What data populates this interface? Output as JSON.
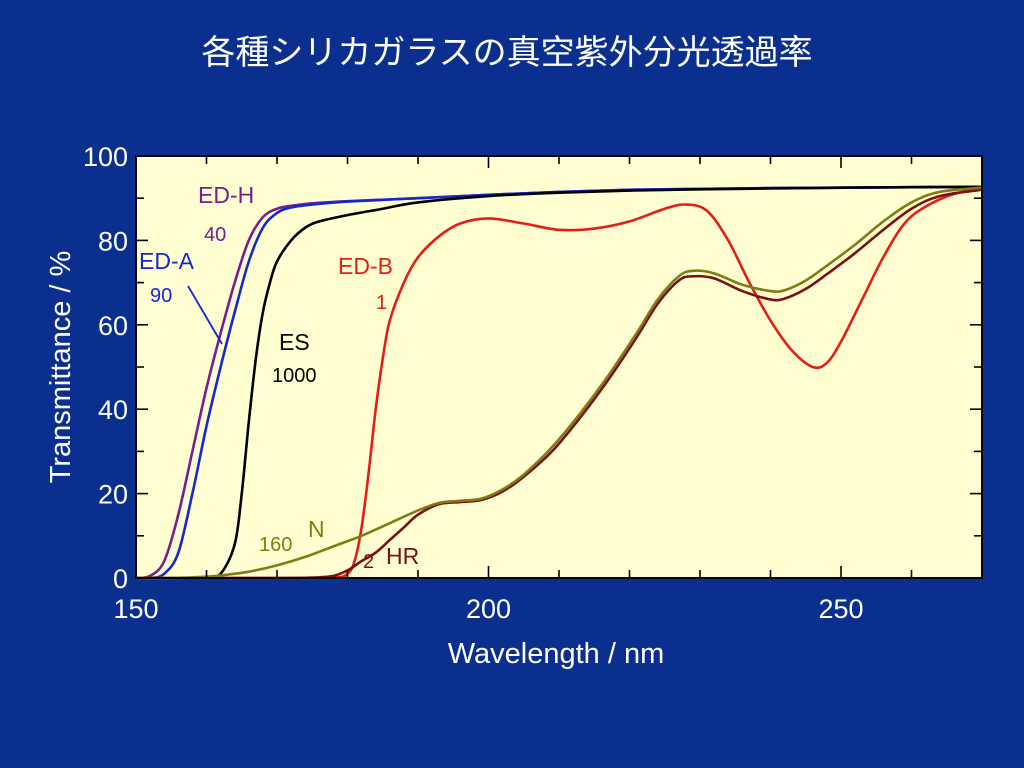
{
  "title": "各種シリカガラスの真空紫外分光透過率",
  "colors": {
    "background": "#0a2f8f",
    "plot_area": "#ffffd2"
  },
  "chart_data": {
    "type": "line",
    "title": "各種シリカガラスの真空紫外分光透過率",
    "xlabel": "Wavelength / nm",
    "ylabel": "Transmittance / %",
    "xlim": [
      150,
      270
    ],
    "ylim": [
      0,
      100
    ],
    "xticks": [
      150,
      200,
      250
    ],
    "yticks": [
      0,
      20,
      40,
      60,
      80,
      100
    ],
    "grid": false,
    "legend": "none (curves labeled directly)",
    "series": [
      {
        "name": "ED-H",
        "number": "40",
        "color": "#7a1d8f",
        "points": [
          [
            150,
            0
          ],
          [
            152,
            0.5
          ],
          [
            154,
            4
          ],
          [
            156,
            15
          ],
          [
            158,
            30
          ],
          [
            160,
            45
          ],
          [
            162,
            58
          ],
          [
            164,
            70
          ],
          [
            166,
            80
          ],
          [
            168,
            85.5
          ],
          [
            170,
            87.5
          ],
          [
            172,
            88.2
          ],
          [
            175,
            88.8
          ],
          [
            180,
            89.3
          ],
          [
            190,
            90
          ],
          [
            200,
            90.8
          ],
          [
            210,
            91.5
          ],
          [
            220,
            92
          ],
          [
            230,
            92.2
          ],
          [
            240,
            92.4
          ],
          [
            250,
            92.5
          ],
          [
            260,
            92.6
          ],
          [
            270,
            92.7
          ]
        ]
      },
      {
        "name": "ED-A",
        "number": "90",
        "color": "#1428d2",
        "points": [
          [
            150,
            0
          ],
          [
            152,
            0
          ],
          [
            154,
            1
          ],
          [
            156,
            6
          ],
          [
            158,
            20
          ],
          [
            160,
            36
          ],
          [
            162,
            50
          ],
          [
            164,
            63
          ],
          [
            166,
            75
          ],
          [
            168,
            83
          ],
          [
            170,
            86.5
          ],
          [
            172,
            87.8
          ],
          [
            175,
            88.5
          ],
          [
            180,
            89.2
          ],
          [
            190,
            90
          ],
          [
            200,
            90.8
          ],
          [
            210,
            91.5
          ],
          [
            220,
            92
          ],
          [
            230,
            92.2
          ],
          [
            240,
            92.4
          ],
          [
            250,
            92.5
          ],
          [
            260,
            92.6
          ],
          [
            270,
            92.7
          ]
        ]
      },
      {
        "name": "ES",
        "number": "1000",
        "color": "#000000",
        "points": [
          [
            150,
            0
          ],
          [
            155,
            0
          ],
          [
            160,
            0.2
          ],
          [
            162,
            1
          ],
          [
            164,
            8
          ],
          [
            165,
            20
          ],
          [
            166,
            37
          ],
          [
            167,
            52
          ],
          [
            168,
            63
          ],
          [
            169,
            70
          ],
          [
            170,
            75
          ],
          [
            172,
            80
          ],
          [
            174,
            83
          ],
          [
            176,
            84.5
          ],
          [
            180,
            86
          ],
          [
            185,
            87.5
          ],
          [
            190,
            89
          ],
          [
            200,
            90.5
          ],
          [
            210,
            91.3
          ],
          [
            220,
            91.8
          ],
          [
            230,
            92.1
          ],
          [
            240,
            92.3
          ],
          [
            250,
            92.5
          ],
          [
            260,
            92.6
          ],
          [
            270,
            92.7
          ]
        ]
      },
      {
        "name": "ED-B",
        "number": "1",
        "color": "#e41e14",
        "points": [
          [
            150,
            0
          ],
          [
            170,
            0
          ],
          [
            178,
            0.1
          ],
          [
            180,
            1
          ],
          [
            181,
            4
          ],
          [
            182,
            12
          ],
          [
            183,
            25
          ],
          [
            184,
            40
          ],
          [
            185,
            52
          ],
          [
            186,
            61
          ],
          [
            188,
            70
          ],
          [
            190,
            76
          ],
          [
            193,
            81
          ],
          [
            196,
            84
          ],
          [
            200,
            85.2
          ],
          [
            205,
            84
          ],
          [
            210,
            82.5
          ],
          [
            215,
            82.8
          ],
          [
            220,
            84.5
          ],
          [
            225,
            87.5
          ],
          [
            228,
            88.5
          ],
          [
            231,
            87
          ],
          [
            234,
            80
          ],
          [
            237,
            70
          ],
          [
            240,
            61
          ],
          [
            243,
            54
          ],
          [
            246,
            50
          ],
          [
            248,
            51
          ],
          [
            250,
            56
          ],
          [
            253,
            66
          ],
          [
            256,
            76
          ],
          [
            259,
            84
          ],
          [
            262,
            88
          ],
          [
            266,
            91
          ],
          [
            270,
            92.2
          ]
        ]
      },
      {
        "name": "HR",
        "number": "2",
        "color": "#7a1010",
        "points": [
          [
            150,
            0
          ],
          [
            170,
            0
          ],
          [
            175,
            0.1
          ],
          [
            178,
            0.5
          ],
          [
            180,
            1.8
          ],
          [
            182,
            4
          ],
          [
            184,
            6
          ],
          [
            186,
            9
          ],
          [
            188,
            12
          ],
          [
            190,
            15
          ],
          [
            193,
            17.5
          ],
          [
            196,
            18
          ],
          [
            199,
            18.5
          ],
          [
            202,
            20.5
          ],
          [
            205,
            24
          ],
          [
            209,
            30
          ],
          [
            213,
            38
          ],
          [
            217,
            47
          ],
          [
            221,
            57
          ],
          [
            224,
            65
          ],
          [
            227,
            70.5
          ],
          [
            229,
            71.5
          ],
          [
            232,
            71
          ],
          [
            236,
            68
          ],
          [
            240,
            66
          ],
          [
            242,
            66.2
          ],
          [
            245,
            68.5
          ],
          [
            248,
            72
          ],
          [
            252,
            77
          ],
          [
            256,
            82.5
          ],
          [
            260,
            87.5
          ],
          [
            264,
            90.5
          ],
          [
            270,
            92
          ]
        ]
      },
      {
        "name": "N",
        "number": "160",
        "color": "#7d7d14",
        "points": [
          [
            150,
            0
          ],
          [
            155,
            0
          ],
          [
            160,
            0.3
          ],
          [
            163,
            0.8
          ],
          [
            166,
            1.5
          ],
          [
            170,
            3
          ],
          [
            174,
            5
          ],
          [
            178,
            7.5
          ],
          [
            182,
            10
          ],
          [
            186,
            13
          ],
          [
            190,
            16
          ],
          [
            193,
            17.8
          ],
          [
            196,
            18.3
          ],
          [
            199,
            18.8
          ],
          [
            202,
            21
          ],
          [
            205,
            24.5
          ],
          [
            209,
            31
          ],
          [
            213,
            39
          ],
          [
            217,
            48
          ],
          [
            221,
            58
          ],
          [
            224,
            66
          ],
          [
            227,
            71.5
          ],
          [
            229,
            72.8
          ],
          [
            232,
            72.2
          ],
          [
            236,
            69.5
          ],
          [
            240,
            68
          ],
          [
            242,
            68.2
          ],
          [
            245,
            70.5
          ],
          [
            248,
            74
          ],
          [
            252,
            79
          ],
          [
            256,
            84.5
          ],
          [
            260,
            89
          ],
          [
            264,
            91.5
          ],
          [
            270,
            92.5
          ]
        ]
      }
    ]
  }
}
